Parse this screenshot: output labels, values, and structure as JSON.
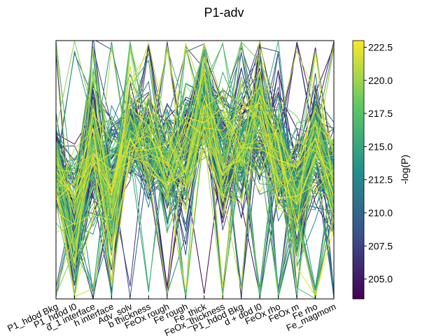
{
  "chart_data": {
    "type": "parallel_coordinates",
    "title": "P1-adv",
    "axes": [
      "P1_hdod Bkg",
      "P1_hdod l0",
      "d_1 interface",
      "h interface",
      "Adv_solv",
      "b thickness",
      "FeOx rough",
      "Fe rough",
      "Fe_thick",
      "FeOx_thickness",
      "P1_hdod Bkg",
      "d + dod l0",
      "FeOx rho",
      "FeOx m",
      "Fe rho",
      "Fe_magmom"
    ],
    "num_series_approx": 150,
    "grid": false,
    "colormap": {
      "name": "viridis",
      "stops": [
        "#440154",
        "#3b528b",
        "#21918c",
        "#5ec962",
        "#fde725"
      ],
      "label": "-log(P)",
      "range": [
        203.5,
        223.0
      ],
      "ticks": [
        "205.0",
        "207.5",
        "210.0",
        "212.5",
        "215.0",
        "217.5",
        "220.0",
        "222.5"
      ]
    }
  }
}
